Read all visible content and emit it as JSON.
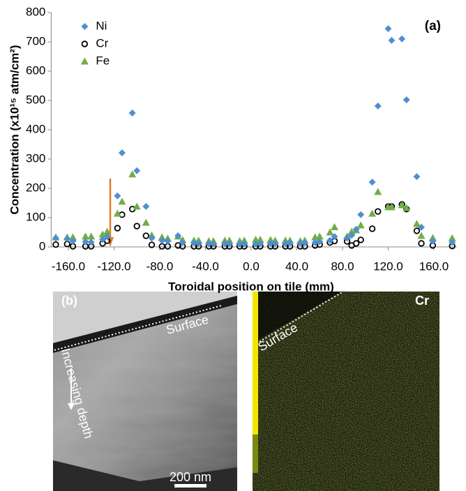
{
  "chart_data": {
    "type": "scatter",
    "x_label": "Toroidal position on tile (mm)",
    "y_label": "Concentration (x10¹⁵ atm/cm²)",
    "annotation": "(a)",
    "x": [
      -171,
      -161,
      -156,
      -145,
      -140,
      -130,
      -126,
      -117,
      -113,
      -104,
      -100,
      -92,
      -87,
      -78,
      -73,
      -64,
      -60,
      -50,
      -46,
      -37,
      -33,
      -23,
      -19,
      -10,
      -6,
      4,
      8,
      17,
      21,
      30,
      34,
      43,
      47,
      56,
      60,
      69,
      73,
      84,
      88,
      92,
      96,
      106,
      111,
      120,
      123,
      132,
      136,
      145,
      149,
      159,
      176
    ],
    "series": [
      {
        "name": "Ni",
        "color": "#4f8fd0",
        "marker": "diamond",
        "values": [
          30,
          28,
          20,
          18,
          16,
          25,
          35,
          174,
          321,
          457,
          260,
          138,
          30,
          22,
          20,
          38,
          15,
          14,
          12,
          12,
          10,
          12,
          11,
          10,
          10,
          10,
          11,
          12,
          12,
          12,
          13,
          13,
          14,
          15,
          18,
          22,
          35,
          30,
          40,
          60,
          110,
          221,
          481,
          745,
          705,
          710,
          502,
          240,
          67,
          20,
          15
        ]
      },
      {
        "name": "Cr",
        "color": "#000000",
        "marker": "circle",
        "values": [
          8,
          10,
          2,
          2,
          2,
          12,
          21,
          64,
          110,
          129,
          71,
          38,
          7,
          2,
          2,
          5,
          2,
          2,
          2,
          2,
          2,
          2,
          2,
          2,
          2,
          2,
          2,
          2,
          2,
          2,
          2,
          2,
          2,
          5,
          8,
          15,
          20,
          19,
          5,
          12,
          24,
          62,
          121,
          138,
          138,
          145,
          129,
          55,
          12,
          5,
          3
        ]
      },
      {
        "name": "Fe",
        "color": "#70ad47",
        "marker": "triangle",
        "values": [
          33,
          33,
          33,
          36,
          36,
          43,
          52,
          114,
          155,
          248,
          138,
          83,
          40,
          33,
          29,
          36,
          24,
          22,
          22,
          20,
          20,
          22,
          22,
          20,
          22,
          25,
          25,
          24,
          22,
          22,
          22,
          20,
          22,
          33,
          36,
          50,
          68,
          36,
          52,
          57,
          74,
          114,
          188,
          136,
          136,
          143,
          133,
          79,
          38,
          31,
          30
        ]
      }
    ],
    "xlim": [
      -175,
      180
    ],
    "ylim": [
      0,
      800
    ],
    "xticks": [
      {
        "value": -160,
        "label": "-160.0"
      },
      {
        "value": -120,
        "label": "-120.0"
      },
      {
        "value": -80,
        "label": "-80.0"
      },
      {
        "value": -40,
        "label": "-40.0"
      },
      {
        "value": 0,
        "label": "0.0"
      },
      {
        "value": 40,
        "label": "40.0"
      },
      {
        "value": 80,
        "label": "80.0"
      },
      {
        "value": 120,
        "label": "120.0"
      },
      {
        "value": 160,
        "label": "160.0"
      }
    ],
    "yticks": [
      0,
      100,
      200,
      300,
      400,
      500,
      600,
      700,
      800
    ],
    "legend": "top-left",
    "grid": false
  },
  "panels": [
    {
      "label": "(b)",
      "surface": "Surface",
      "depth": "Increasing depth",
      "scale_bar": "200 nm"
    },
    {
      "surface": "Surface",
      "element": "Cr"
    }
  ]
}
